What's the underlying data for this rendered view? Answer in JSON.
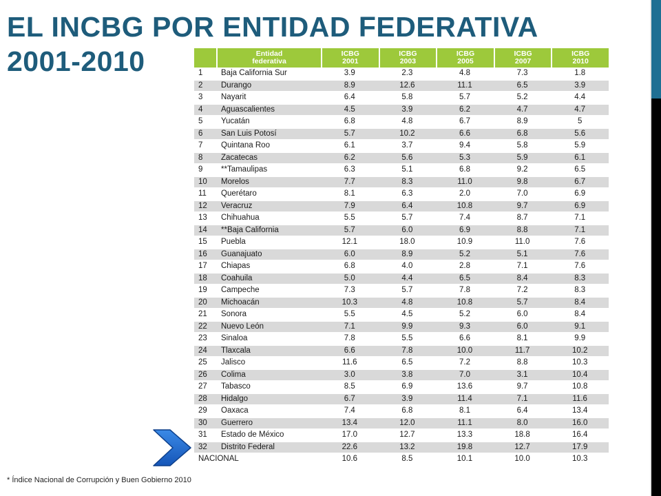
{
  "title": {
    "line1": "EL INCBG POR ENTIDAD FEDERATIVA",
    "line2": "2001-2010"
  },
  "table": {
    "headers": [
      {
        "l1": "",
        "l2": ""
      },
      {
        "l1": "Entidad",
        "l2": "federativa"
      },
      {
        "l1": "ICBG",
        "l2": "2001"
      },
      {
        "l1": "ICBG",
        "l2": "2003"
      },
      {
        "l1": "ICBG",
        "l2": "2005"
      },
      {
        "l1": "ICBG",
        "l2": "2007"
      },
      {
        "l1": "ICBG",
        "l2": "2010"
      }
    ],
    "rows": [
      [
        "1",
        "Baja California Sur",
        "3.9",
        "2.3",
        "4.8",
        "7.3",
        "1.8"
      ],
      [
        "2",
        "Durango",
        "8.9",
        "12.6",
        "11.1",
        "6.5",
        "3.9"
      ],
      [
        "3",
        "Nayarit",
        "6.4",
        "5.8",
        "5.7",
        "5.2",
        "4.4"
      ],
      [
        "4",
        "Aguascalientes",
        "4.5",
        "3.9",
        "6.2",
        "4.7",
        "4.7"
      ],
      [
        "5",
        "Yucatán",
        "6.8",
        "4.8",
        "6.7",
        "8.9",
        "5"
      ],
      [
        "6",
        "San Luis Potosí",
        "5.7",
        "10.2",
        "6.6",
        "6.8",
        "5.6"
      ],
      [
        "7",
        "Quintana Roo",
        "6.1",
        "3.7",
        "9.4",
        "5.8",
        "5.9"
      ],
      [
        "8",
        "Zacatecas",
        "6.2",
        "5.6",
        "5.3",
        "5.9",
        "6.1"
      ],
      [
        "9",
        "**Tamaulipas",
        "6.3",
        "5.1",
        "6.8",
        "9.2",
        "6.5"
      ],
      [
        "10",
        "Morelos",
        "7.7",
        "8.3",
        "11.0",
        "9.8",
        "6.7"
      ],
      [
        "11",
        "Querétaro",
        "8.1",
        "6.3",
        "2.0",
        "7.0",
        "6.9"
      ],
      [
        "12",
        "Veracruz",
        "7.9",
        "6.4",
        "10.8",
        "9.7",
        "6.9"
      ],
      [
        "13",
        "Chihuahua",
        "5.5",
        "5.7",
        "7.4",
        "8.7",
        "7.1"
      ],
      [
        "14",
        "**Baja California",
        "5.7",
        "6.0",
        "6.9",
        "8.8",
        "7.1"
      ],
      [
        "15",
        "Puebla",
        "12.1",
        "18.0",
        "10.9",
        "11.0",
        "7.6"
      ],
      [
        "16",
        "Guanajuato",
        "6.0",
        "8.9",
        "5.2",
        "5.1",
        "7.6"
      ],
      [
        "17",
        "Chiapas",
        "6.8",
        "4.0",
        "2.8",
        "7.1",
        "7.6"
      ],
      [
        "18",
        "Coahuila",
        "5.0",
        "4.4",
        "6.5",
        "8.4",
        "8.3"
      ],
      [
        "19",
        "Campeche",
        "7.3",
        "5.7",
        "7.8",
        "7.2",
        "8.3"
      ],
      [
        "20",
        "Michoacán",
        "10.3",
        "4.8",
        "10.8",
        "5.7",
        "8.4"
      ],
      [
        "21",
        "Sonora",
        "5.5",
        "4.5",
        "5.2",
        "6.0",
        "8.4"
      ],
      [
        "22",
        "Nuevo León",
        "7.1",
        "9.9",
        "9.3",
        "6.0",
        "9.1"
      ],
      [
        "23",
        "Sinaloa",
        "7.8",
        "5.5",
        "6.6",
        "8.1",
        "9.9"
      ],
      [
        "24",
        "Tlaxcala",
        "6.6",
        "7.8",
        "10.0",
        "11.7",
        "10.2"
      ],
      [
        "25",
        "Jalisco",
        "11.6",
        "6.5",
        "7.2",
        "8.8",
        "10.3"
      ],
      [
        "26",
        "Colima",
        "3.0",
        "3.8",
        "7.0",
        "3.1",
        "10.4"
      ],
      [
        "27",
        "Tabasco",
        "8.5",
        "6.9",
        "13.6",
        "9.7",
        "10.8"
      ],
      [
        "28",
        "Hidalgo",
        "6.7",
        "3.9",
        "11.4",
        "7.1",
        "11.6"
      ],
      [
        "29",
        "Oaxaca",
        "7.4",
        "6.8",
        "8.1",
        "6.4",
        "13.4"
      ],
      [
        "30",
        "Guerrero",
        "13.4",
        "12.0",
        "11.1",
        "8.0",
        "16.0"
      ],
      [
        "31",
        "Estado de México",
        "17.0",
        "12.7",
        "13.3",
        "18.8",
        "16.4"
      ],
      [
        "32",
        "Distrito Federal",
        "22.6",
        "13.2",
        "19.8",
        "12.7",
        "17.9"
      ]
    ],
    "national": {
      "label": "NACIONAL",
      "values": [
        "10.6",
        "8.5",
        "10.1",
        "10.0",
        "10.3"
      ]
    }
  },
  "footnote": "*  Índice Nacional de Corrupción y Buen Gobierno 2010",
  "colors": {
    "title": "#1e5c7b",
    "header_green": "#9dc93b",
    "arrow_blue": "#1f6fd0",
    "side_blue": "#1f6f93"
  },
  "icons": {
    "arrow": "chevron-right-arrow-icon"
  }
}
